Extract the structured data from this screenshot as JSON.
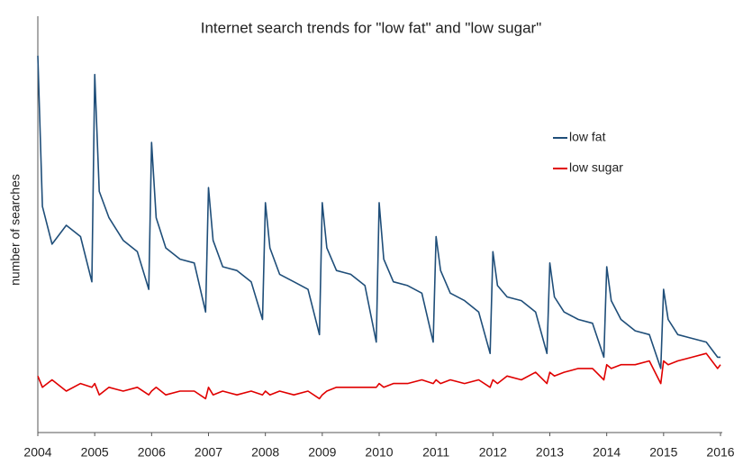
{
  "chart_data": {
    "type": "line",
    "title": "Internet search trends for \"low fat\" and \"low sugar\"",
    "y_label": "number of searches",
    "x": [
      2004,
      2004.08,
      2004.25,
      2004.5,
      2004.75,
      2004.95,
      2005,
      2005.08,
      2005.25,
      2005.5,
      2005.75,
      2005.95,
      2006,
      2006.08,
      2006.25,
      2006.5,
      2006.75,
      2006.95,
      2007,
      2007.08,
      2007.25,
      2007.5,
      2007.75,
      2007.95,
      2008,
      2008.08,
      2008.25,
      2008.5,
      2008.75,
      2008.95,
      2009,
      2009.08,
      2009.25,
      2009.5,
      2009.75,
      2009.95,
      2010,
      2010.08,
      2010.25,
      2010.5,
      2010.75,
      2010.95,
      2011,
      2011.08,
      2011.25,
      2011.5,
      2011.75,
      2011.95,
      2012,
      2012.08,
      2012.25,
      2012.5,
      2012.75,
      2012.95,
      2013,
      2013.08,
      2013.25,
      2013.5,
      2013.75,
      2013.95,
      2014,
      2014.08,
      2014.25,
      2014.5,
      2014.75,
      2014.95,
      2015,
      2015.08,
      2015.25,
      2015.5,
      2015.75,
      2015.95,
      2016
    ],
    "series": [
      {
        "name": "low fat",
        "color": "#1f4e79",
        "values": [
          100,
          60,
          50,
          55,
          52,
          40,
          95,
          64,
          57,
          51,
          48,
          38,
          77,
          57,
          49,
          46,
          45,
          32,
          65,
          51,
          44,
          43,
          40,
          30,
          61,
          49,
          42,
          40,
          38,
          26,
          61,
          49,
          43,
          42,
          39,
          24,
          61,
          46,
          40,
          39,
          37,
          24,
          52,
          43,
          37,
          35,
          32,
          21,
          48,
          39,
          36,
          35,
          32,
          21,
          45,
          36,
          32,
          30,
          29,
          20,
          44,
          35,
          30,
          27,
          26,
          17,
          38,
          30,
          26,
          25,
          24,
          20,
          20
        ]
      },
      {
        "name": "low sugar",
        "color": "#e00000",
        "values": [
          15,
          12,
          14,
          11,
          13,
          12,
          13,
          10,
          12,
          11,
          12,
          10,
          11,
          12,
          10,
          11,
          11,
          9,
          12,
          10,
          11,
          10,
          11,
          10,
          11,
          10,
          11,
          10,
          11,
          9,
          10,
          11,
          12,
          12,
          12,
          12,
          13,
          12,
          13,
          13,
          14,
          13,
          14,
          13,
          14,
          13,
          14,
          12,
          14,
          13,
          15,
          14,
          16,
          13,
          16,
          15,
          16,
          17,
          17,
          14,
          18,
          17,
          18,
          18,
          19,
          13,
          19,
          18,
          19,
          20,
          21,
          17,
          18
        ]
      }
    ],
    "xlim": [
      2004,
      2016
    ],
    "xticks": [
      2004,
      2005,
      2006,
      2007,
      2008,
      2009,
      2010,
      2011,
      2012,
      2013,
      2014,
      2015,
      2016
    ],
    "ylim": [
      0,
      110
    ],
    "legend": "upper right"
  }
}
